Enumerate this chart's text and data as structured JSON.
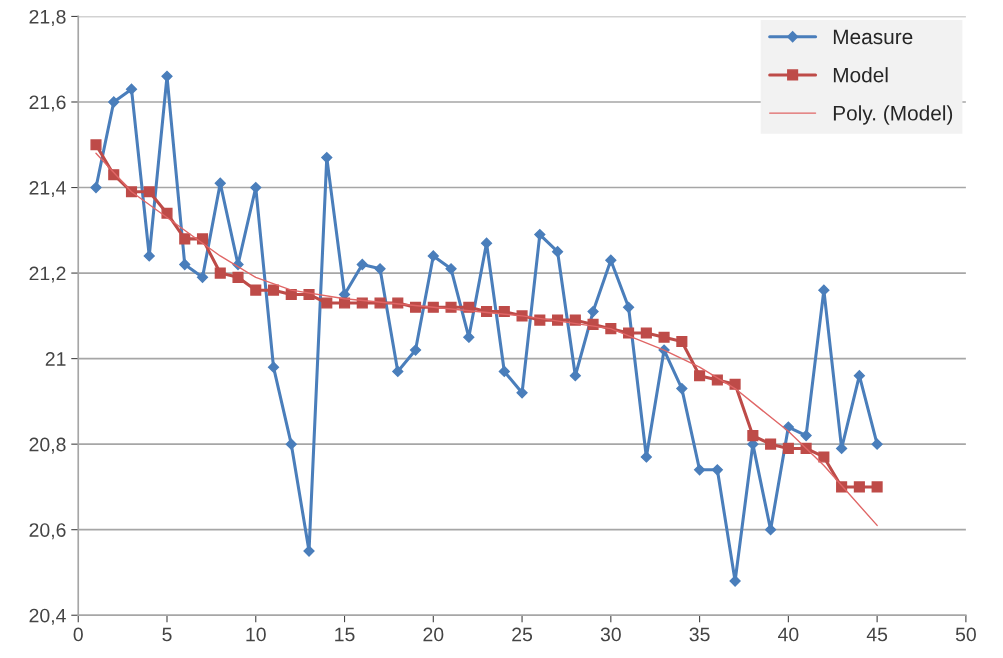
{
  "chart_data": {
    "type": "line",
    "xlim": [
      0,
      50
    ],
    "xticks": [
      0,
      5,
      10,
      15,
      20,
      25,
      30,
      35,
      40,
      45,
      50
    ],
    "ylim": [
      20.4,
      21.8
    ],
    "yticks": [
      {
        "value": 20.4,
        "label": "20,4"
      },
      {
        "value": 20.6,
        "label": "20,6"
      },
      {
        "value": 20.8,
        "label": "20,8"
      },
      {
        "value": 21,
        "label": "21"
      },
      {
        "value": 21.2,
        "label": "21,2"
      },
      {
        "value": 21.4,
        "label": "21,4"
      },
      {
        "value": 21.6,
        "label": "21,6"
      },
      {
        "value": 21.8,
        "label": "21,8"
      }
    ],
    "grid": "y",
    "legend": "top right",
    "series": [
      {
        "name": "Measure",
        "color": "#4a7ebb",
        "marker": "diamond",
        "x": [
          1,
          2,
          3,
          4,
          5,
          6,
          7,
          8,
          9,
          10,
          11,
          12,
          13,
          14,
          15,
          16,
          17,
          18,
          19,
          20,
          21,
          22,
          23,
          24,
          25,
          26,
          27,
          28,
          29,
          30,
          31,
          32,
          33,
          34,
          35,
          36,
          37,
          38,
          39,
          40,
          41,
          42,
          43,
          44,
          45
        ],
        "values": [
          21.4,
          21.6,
          21.63,
          21.24,
          21.66,
          21.22,
          21.19,
          21.41,
          21.22,
          21.4,
          20.98,
          20.8,
          20.55,
          21.47,
          21.15,
          21.22,
          21.21,
          20.97,
          21.02,
          21.24,
          21.21,
          21.05,
          21.27,
          20.97,
          20.92,
          21.29,
          21.25,
          20.96,
          21.11,
          21.23,
          21.12,
          20.77,
          21.02,
          20.93,
          20.74,
          20.74,
          20.48,
          20.8,
          20.6,
          20.84,
          20.82,
          21.16,
          20.79,
          20.96,
          20.8
        ]
      },
      {
        "name": "Model",
        "color": "#be4b48",
        "marker": "square",
        "x": [
          1,
          2,
          3,
          4,
          5,
          6,
          7,
          8,
          9,
          10,
          11,
          12,
          13,
          14,
          15,
          16,
          17,
          18,
          19,
          20,
          21,
          22,
          23,
          24,
          25,
          26,
          27,
          28,
          29,
          30,
          31,
          32,
          33,
          34,
          35,
          36,
          37,
          38,
          39,
          40,
          41,
          42,
          43,
          44,
          45
        ],
        "values": [
          21.5,
          21.43,
          21.39,
          21.39,
          21.34,
          21.28,
          21.28,
          21.2,
          21.19,
          21.16,
          21.16,
          21.15,
          21.15,
          21.13,
          21.13,
          21.13,
          21.13,
          21.13,
          21.12,
          21.12,
          21.12,
          21.12,
          21.11,
          21.11,
          21.1,
          21.09,
          21.09,
          21.09,
          21.08,
          21.07,
          21.06,
          21.06,
          21.05,
          21.04,
          20.96,
          20.95,
          20.94,
          20.82,
          20.8,
          20.79,
          20.79,
          20.77,
          20.7,
          20.7,
          20.7
        ]
      },
      {
        "name": "Poly. (Model)",
        "color": "#e06666",
        "marker": "none",
        "x": [
          1,
          3,
          5,
          8,
          10,
          12,
          15,
          20,
          25,
          30,
          33,
          35,
          37,
          40,
          42,
          45
        ],
        "values": [
          21.48,
          21.39,
          21.33,
          21.24,
          21.19,
          21.16,
          21.14,
          21.12,
          21.1,
          21.07,
          21.02,
          20.98,
          20.93,
          20.83,
          20.75,
          20.61
        ]
      }
    ]
  }
}
